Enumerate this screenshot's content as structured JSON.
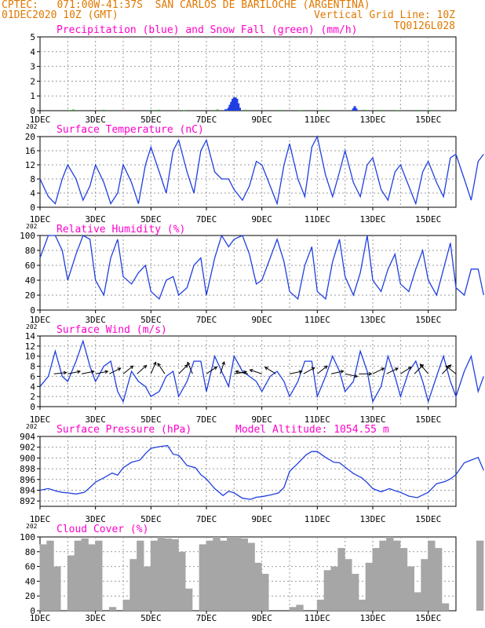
{
  "header": {
    "line1_left": "CPTEC:   071:00W-41:37S  SAN CARLOS DE BARILOCHE (ARGENTINA)",
    "line2_left": "01DEC2020 10Z (GMT)",
    "line2_right": "Vertical Grid Line: 10Z",
    "line3_right": "TQ0126L028"
  },
  "colors": {
    "header_text": "#e07800",
    "panel_title": "#ff00cc",
    "line": "#1f3fe0",
    "snow": "#20b020",
    "cloud": "#a6a6a6",
    "grid": "#999999",
    "arrow": "#000000"
  },
  "x_axis": {
    "ticks": [
      "1DEC",
      "3DEC",
      "5DEC",
      "7DEC",
      "9DEC",
      "11DEC",
      "13DEC",
      "15DEC"
    ],
    "year_fragment": "202"
  },
  "chart_data": [
    {
      "id": "precip",
      "type": "bar",
      "title": "Precipitation (blue) and Snow Fall (green) (mm/h)",
      "ylim": [
        0,
        5
      ],
      "yticks": [
        0,
        1,
        2,
        3,
        4,
        5
      ],
      "x_unit": "day offset from 1DEC 10Z",
      "series": [
        {
          "name": "Precipitation",
          "x": [
            6.7,
            6.8,
            6.85,
            6.9,
            6.95,
            7.0,
            7.05,
            7.1,
            7.15,
            7.2,
            11.3,
            11.35,
            11.4
          ],
          "values": [
            0.1,
            0.2,
            0.4,
            0.6,
            0.8,
            0.9,
            0.9,
            0.8,
            0.5,
            0.2,
            0.15,
            0.3,
            0.15
          ]
        },
        {
          "name": "Snow Fall",
          "x": [
            1.0,
            1.2,
            2.3,
            2.6,
            4.0,
            4.3,
            5.2,
            6.4,
            7.4,
            8.6,
            9.4,
            10.2,
            11.7,
            12.3,
            12.9,
            13.6,
            14.1
          ],
          "values": [
            0.05,
            0.08,
            0.06,
            0.05,
            0.05,
            0.06,
            0.04,
            0.08,
            0.06,
            0.05,
            0.04,
            0.05,
            0.06,
            0.05,
            0.04,
            0.05,
            0.05
          ]
        }
      ]
    },
    {
      "id": "temperature",
      "type": "line",
      "title": "Surface Temperature (nC)",
      "ylim": [
        0,
        20
      ],
      "yticks": [
        0,
        4,
        8,
        12,
        16,
        20
      ],
      "x_unit": "day offset from 1DEC 10Z",
      "series": [
        {
          "name": "Surface Temperature",
          "x": [
            0,
            0.3,
            0.55,
            0.8,
            1.0,
            1.3,
            1.55,
            1.8,
            2.0,
            2.3,
            2.55,
            2.8,
            3.0,
            3.3,
            3.55,
            3.8,
            4.0,
            4.3,
            4.55,
            4.8,
            5.0,
            5.3,
            5.55,
            5.8,
            6.0,
            6.3,
            6.55,
            6.8,
            7.0,
            7.3,
            7.55,
            7.8,
            8.0,
            8.3,
            8.55,
            8.8,
            9.0,
            9.3,
            9.55,
            9.8,
            10.0,
            10.3,
            10.55,
            10.8,
            11.0,
            11.3,
            11.55,
            11.8,
            12.0,
            12.3,
            12.55,
            12.8,
            13.0,
            13.3,
            13.55,
            13.8,
            14.0,
            14.3,
            14.55,
            14.8,
            15.0,
            15.3,
            15.55,
            15.8,
            16.0
          ],
          "values": [
            8,
            3,
            1,
            8,
            12,
            8,
            2,
            6,
            12,
            7,
            1,
            4,
            12,
            7,
            1,
            12,
            17,
            10,
            4,
            16,
            19,
            10,
            4,
            16,
            19,
            10,
            8,
            8,
            5,
            2,
            6,
            13,
            12,
            6,
            1,
            12,
            18,
            8,
            3,
            17,
            20,
            9,
            3,
            10,
            16,
            7,
            3,
            12,
            14,
            5,
            2,
            10,
            12,
            6,
            1,
            10,
            13,
            7,
            3,
            14,
            15,
            8,
            2,
            13,
            15
          ]
        }
      ]
    },
    {
      "id": "humidity",
      "type": "line",
      "title": "Relative Humidity (%)",
      "ylim": [
        0,
        100
      ],
      "yticks": [
        0,
        20,
        40,
        60,
        80,
        100
      ],
      "x_unit": "day offset from 1DEC 10Z",
      "series": [
        {
          "name": "Relative Humidity",
          "x": [
            0,
            0.3,
            0.55,
            0.8,
            1.0,
            1.3,
            1.55,
            1.8,
            2.0,
            2.3,
            2.55,
            2.8,
            3.0,
            3.3,
            3.55,
            3.8,
            4.0,
            4.3,
            4.55,
            4.8,
            5.0,
            5.3,
            5.55,
            5.8,
            6.0,
            6.3,
            6.55,
            6.8,
            7.0,
            7.3,
            7.55,
            7.8,
            8.0,
            8.3,
            8.55,
            8.8,
            9.0,
            9.3,
            9.55,
            9.8,
            10.0,
            10.3,
            10.55,
            10.8,
            11.0,
            11.3,
            11.55,
            11.8,
            12.0,
            12.3,
            12.55,
            12.8,
            13.0,
            13.3,
            13.55,
            13.8,
            14.0,
            14.3,
            14.55,
            14.8,
            15.0,
            15.3,
            15.55,
            15.8,
            16.0
          ],
          "values": [
            70,
            100,
            100,
            80,
            40,
            75,
            100,
            95,
            40,
            20,
            70,
            95,
            45,
            35,
            50,
            60,
            25,
            15,
            40,
            45,
            20,
            30,
            60,
            70,
            20,
            70,
            100,
            85,
            95,
            100,
            75,
            35,
            40,
            70,
            95,
            65,
            25,
            15,
            60,
            85,
            25,
            15,
            65,
            95,
            45,
            20,
            50,
            100,
            40,
            25,
            55,
            75,
            35,
            25,
            55,
            80,
            40,
            20,
            55,
            90,
            30,
            20,
            55,
            55,
            20
          ]
        }
      ]
    },
    {
      "id": "wind",
      "type": "line",
      "title": "Surface Wind (m/s)",
      "ylim": [
        0,
        14
      ],
      "yticks": [
        0,
        2,
        4,
        6,
        8,
        10,
        12,
        14
      ],
      "x_unit": "day offset from 1DEC 10Z",
      "series": [
        {
          "name": "Surface Wind speed",
          "x": [
            0,
            0.3,
            0.55,
            0.8,
            1.0,
            1.3,
            1.55,
            1.8,
            2.0,
            2.3,
            2.55,
            2.8,
            3.0,
            3.3,
            3.55,
            3.8,
            4.0,
            4.3,
            4.55,
            4.8,
            5.0,
            5.3,
            5.55,
            5.8,
            6.0,
            6.3,
            6.55,
            6.8,
            7.0,
            7.3,
            7.55,
            7.8,
            8.0,
            8.3,
            8.55,
            8.8,
            9.0,
            9.3,
            9.55,
            9.8,
            10.0,
            10.3,
            10.55,
            10.8,
            11.0,
            11.3,
            11.55,
            11.8,
            12.0,
            12.3,
            12.55,
            12.8,
            13.0,
            13.3,
            13.55,
            13.8,
            14.0,
            14.3,
            14.55,
            14.8,
            15.0,
            15.3,
            15.55,
            15.8,
            16.0
          ],
          "values": [
            4,
            6,
            11,
            6,
            5,
            9,
            13,
            8,
            5,
            8,
            9,
            3,
            1,
            7,
            5,
            4,
            2,
            3,
            6,
            7,
            2,
            5,
            9,
            9,
            3,
            10,
            7,
            4,
            10,
            7,
            6,
            5,
            3,
            6,
            7,
            5,
            2,
            5,
            9,
            9,
            2,
            6,
            10,
            7,
            3,
            5,
            11,
            7,
            1,
            4,
            10,
            6,
            2,
            7,
            9,
            5,
            1,
            6,
            10,
            5,
            2,
            7,
            10,
            3,
            6
          ]
        },
        {
          "name": "Wind direction arrows",
          "x": [
            0.5,
            1.0,
            1.5,
            2.0,
            2.5,
            3.0,
            3.5,
            4.0,
            4.5,
            5.0,
            5.5,
            6.0,
            6.5,
            7.0,
            7.5,
            8.0,
            8.5,
            9.0,
            9.5,
            10.0,
            10.5,
            11.0,
            11.5,
            12.0,
            12.5,
            13.0,
            13.5,
            14.0,
            14.5,
            15.0
          ],
          "dx": [
            1,
            1,
            1,
            1,
            1,
            1,
            1,
            0.5,
            -0.4,
            0.6,
            -0.3,
            0.9,
            0.3,
            0.6,
            -1,
            -0.6,
            -0.8,
            1,
            0.9,
            1,
            0.9,
            0.9,
            1,
            1,
            1,
            0.8,
            0.6,
            -0.5,
            0.7,
            -0.5
          ],
          "dy": [
            0.1,
            0.2,
            0.2,
            0.2,
            0.5,
            0.8,
            0.9,
            1.2,
            0.6,
            0.6,
            0.7,
            0.6,
            0.9,
            0.1,
            0.2,
            0.2,
            0.5,
            0.2,
            0.5,
            0.8,
            0.2,
            -0.2,
            0,
            0.5,
            0.5,
            0.5,
            0.6,
            0.6,
            0.7,
            0.4
          ]
        }
      ]
    },
    {
      "id": "pressure",
      "type": "line",
      "title": "Surface Pressure (hPa)",
      "annotation": "Model Altitude: 1054.55  m",
      "ylim": [
        891,
        904
      ],
      "yticks": [
        892,
        894,
        896,
        898,
        900,
        902,
        904
      ],
      "x_unit": "day offset from 1DEC 10Z",
      "series": [
        {
          "name": "Surface Pressure",
          "x": [
            0,
            0.3,
            0.6,
            0.8,
            1.0,
            1.3,
            1.6,
            1.8,
            2.0,
            2.3,
            2.6,
            2.8,
            3.0,
            3.3,
            3.6,
            3.8,
            4.0,
            4.3,
            4.6,
            4.8,
            5.0,
            5.3,
            5.6,
            5.8,
            6.0,
            6.3,
            6.6,
            6.8,
            7.0,
            7.3,
            7.6,
            7.8,
            8.0,
            8.3,
            8.6,
            8.8,
            9.0,
            9.3,
            9.6,
            9.8,
            10.0,
            10.3,
            10.6,
            10.8,
            11.0,
            11.3,
            11.6,
            11.8,
            12.0,
            12.3,
            12.6,
            12.8,
            13.0,
            13.3,
            13.6,
            13.8,
            14.0,
            14.3,
            14.6,
            14.8,
            15.0,
            15.3,
            15.6,
            15.8,
            16.0
          ],
          "values": [
            894,
            894.3,
            893.8,
            893.6,
            893.5,
            893.3,
            893.6,
            894.5,
            895.5,
            896.3,
            897.2,
            896.8,
            898.2,
            899.2,
            899.6,
            900.8,
            901.8,
            902.1,
            902.3,
            900.7,
            900.5,
            898.6,
            898.2,
            896.9,
            896.1,
            894.3,
            893,
            893.8,
            893.5,
            892.5,
            892.3,
            892.7,
            892.8,
            893.1,
            893.5,
            894.5,
            897.5,
            899,
            900.6,
            901.2,
            901.2,
            900.1,
            899.2,
            899.1,
            898.3,
            897.1,
            896.3,
            895.4,
            894.3,
            893.7,
            894.3,
            893.9,
            893.6,
            892.9,
            892.6,
            893.1,
            893.6,
            895.2,
            895.6,
            896.1,
            896.9,
            899.1,
            899.7,
            900.1,
            897.7
          ]
        }
      ]
    },
    {
      "id": "cloud",
      "type": "bar",
      "title": "Cloud Cover (%)",
      "ylim": [
        0,
        100
      ],
      "yticks": [
        0,
        20,
        40,
        60,
        80,
        100
      ],
      "x_unit": "day offset from 1DEC 10Z",
      "series": [
        {
          "name": "Cloud Cover",
          "x": [
            0.25,
            0.5,
            0.75,
            1.0,
            1.25,
            1.5,
            1.75,
            2.0,
            2.25,
            2.5,
            2.75,
            3.0,
            3.25,
            3.5,
            3.75,
            4.0,
            4.25,
            4.5,
            4.75,
            5.0,
            5.25,
            5.5,
            5.75,
            6.0,
            6.25,
            6.5,
            6.75,
            7.0,
            7.25,
            7.5,
            7.75,
            8.0,
            8.25,
            8.5,
            8.75,
            9.0,
            9.25,
            9.5,
            9.75,
            10.0,
            10.25,
            10.5,
            10.75,
            11.0,
            11.25,
            11.5,
            11.75,
            12.0,
            12.25,
            12.5,
            12.75,
            13.0,
            13.25,
            13.5,
            13.75,
            14.0,
            14.25,
            14.5,
            14.75,
            15.0,
            15.25,
            15.5,
            15.75,
            16.0
          ],
          "values": [
            90,
            95,
            60,
            0,
            75,
            95,
            98,
            90,
            95,
            0,
            5,
            0,
            15,
            70,
            95,
            60,
            95,
            100,
            98,
            97,
            80,
            30,
            0,
            90,
            95,
            100,
            95,
            100,
            100,
            98,
            92,
            65,
            50,
            0,
            0,
            0,
            5,
            8,
            0,
            0,
            15,
            55,
            60,
            85,
            70,
            50,
            15,
            65,
            85,
            95,
            100,
            95,
            85,
            60,
            25,
            70,
            95,
            85,
            10,
            0,
            0,
            0,
            0,
            95
          ]
        }
      ]
    }
  ]
}
